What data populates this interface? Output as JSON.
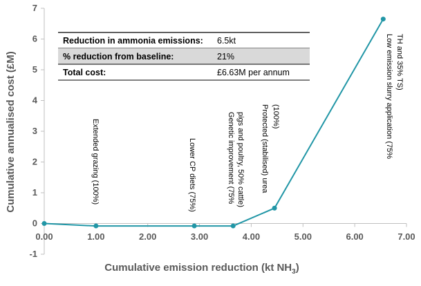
{
  "chart_data": {
    "type": "line",
    "title": "",
    "xlabel": "Cumulative emission reduction (kt NH",
    "xlabel_subscript": "3",
    "xlabel_suffix": ")",
    "ylabel": "Cumulative annualised cost (£M)",
    "xlim": [
      0,
      7
    ],
    "ylim": [
      -1,
      7
    ],
    "x_ticks": [
      "0.00",
      "1.00",
      "2.00",
      "3.00",
      "4.00",
      "5.00",
      "6.00",
      "7.00"
    ],
    "y_ticks": [
      "-1",
      "0",
      "1",
      "2",
      "3",
      "4",
      "5",
      "6",
      "7"
    ],
    "grid": false,
    "colors": {
      "series": "#2196A6",
      "axis": "#bfbfbf",
      "text": "#595959"
    },
    "series": [
      {
        "x": [
          0.0,
          1.0,
          2.9,
          3.65,
          4.45,
          6.55
        ],
        "y": [
          0.0,
          -0.08,
          -0.08,
          -0.08,
          0.5,
          6.65
        ]
      }
    ],
    "annotations": [
      {
        "lines": [
          "Extended grazing (100%)"
        ],
        "x": 1.0,
        "y": -0.08
      },
      {
        "lines": [
          "Lower CP diets (75%)"
        ],
        "x": 2.9,
        "y": -0.08
      },
      {
        "lines": [
          "Genetic improvement (75%",
          "pigs and poultry, 50% cattle)"
        ],
        "x": 3.65,
        "y": -0.08
      },
      {
        "lines": [
          "Protected (stabilised) urea",
          "(100%)"
        ],
        "x": 4.45,
        "y": 0.5
      },
      {
        "lines": [
          "Low emission slurry application (75%",
          "TH and 35% TS)"
        ],
        "x": 6.55,
        "y": 6.65
      }
    ],
    "summary_table": [
      {
        "label": "Reduction in ammonia emissions:",
        "value": "6.5kt",
        "shaded": false
      },
      {
        "label": "% reduction from baseline:",
        "value": "21%",
        "shaded": true
      },
      {
        "label": "Total cost:",
        "value": "£6.63M per annum",
        "shaded": false
      }
    ]
  }
}
